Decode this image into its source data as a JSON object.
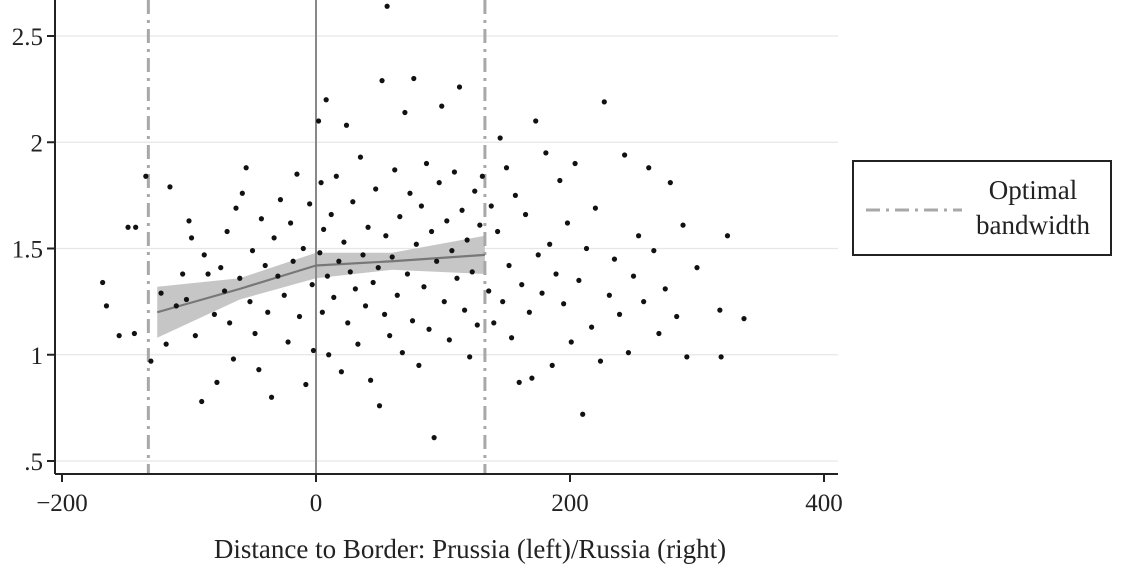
{
  "chart_data": {
    "type": "scatter",
    "title": "",
    "xlabel": "Distance to Border: Prussia (left)/Russia (right)",
    "ylabel": "",
    "xlim": [
      -200,
      410
    ],
    "ylim": [
      0.45,
      2.65
    ],
    "x_ticks": [
      -200,
      0,
      200,
      400
    ],
    "x_tick_labels": [
      "−200",
      "0",
      "200",
      "400"
    ],
    "y_ticks": [
      0.5,
      1,
      1.5,
      2,
      2.5
    ],
    "y_tick_labels": [
      ".5",
      "1",
      "1.5",
      "2",
      "2.5"
    ],
    "grid": "horizontal",
    "border_line_x": 0,
    "bandwidth_lines_x": [
      -132,
      133
    ],
    "legend": {
      "placement": "right",
      "entries": [
        {
          "label_lines": [
            "Optimal",
            "bandwidth"
          ],
          "style": "dash-dot"
        }
      ]
    },
    "colors": {
      "points": "#111111",
      "fit_line": "#777777",
      "ci_band": "#c6c6c6",
      "bandwidth_line": "#a8a8a8",
      "border_line": "#888888",
      "grid": "#e6e6e6",
      "axis": "#222222"
    },
    "fit_left": {
      "x": [
        -125,
        -60,
        0
      ],
      "y": [
        1.2,
        1.31,
        1.42
      ],
      "ci_low": [
        1.08,
        1.26,
        1.36
      ],
      "ci_high": [
        1.32,
        1.36,
        1.48
      ]
    },
    "fit_right": {
      "x": [
        0,
        60,
        133
      ],
      "y": [
        1.42,
        1.44,
        1.47
      ],
      "ci_low": [
        1.36,
        1.4,
        1.38
      ],
      "ci_high": [
        1.48,
        1.48,
        1.56
      ]
    },
    "points": [
      {
        "x": -168,
        "y": 1.34
      },
      {
        "x": -165,
        "y": 1.23
      },
      {
        "x": -155,
        "y": 1.09
      },
      {
        "x": -148,
        "y": 1.6
      },
      {
        "x": -142,
        "y": 1.6
      },
      {
        "x": -143,
        "y": 1.1
      },
      {
        "x": -134,
        "y": 1.84
      },
      {
        "x": -130,
        "y": 0.97
      },
      {
        "x": -122,
        "y": 1.29
      },
      {
        "x": -118,
        "y": 1.05
      },
      {
        "x": -115,
        "y": 1.79
      },
      {
        "x": -110,
        "y": 1.23
      },
      {
        "x": -105,
        "y": 1.38
      },
      {
        "x": -102,
        "y": 1.26
      },
      {
        "x": -100,
        "y": 1.63
      },
      {
        "x": -98,
        "y": 1.55
      },
      {
        "x": -95,
        "y": 1.09
      },
      {
        "x": -90,
        "y": 0.78
      },
      {
        "x": -88,
        "y": 1.47
      },
      {
        "x": -85,
        "y": 1.38
      },
      {
        "x": -80,
        "y": 1.19
      },
      {
        "x": -78,
        "y": 0.87
      },
      {
        "x": -75,
        "y": 1.41
      },
      {
        "x": -72,
        "y": 1.3
      },
      {
        "x": -70,
        "y": 1.58
      },
      {
        "x": -68,
        "y": 1.15
      },
      {
        "x": -65,
        "y": 0.98
      },
      {
        "x": -63,
        "y": 1.69
      },
      {
        "x": -60,
        "y": 1.36
      },
      {
        "x": -58,
        "y": 1.76
      },
      {
        "x": -55,
        "y": 1.88
      },
      {
        "x": -52,
        "y": 1.25
      },
      {
        "x": -50,
        "y": 1.49
      },
      {
        "x": -48,
        "y": 1.1
      },
      {
        "x": -45,
        "y": 0.93
      },
      {
        "x": -43,
        "y": 1.64
      },
      {
        "x": -40,
        "y": 1.42
      },
      {
        "x": -38,
        "y": 1.2
      },
      {
        "x": -35,
        "y": 0.8
      },
      {
        "x": -33,
        "y": 1.55
      },
      {
        "x": -30,
        "y": 1.37
      },
      {
        "x": -28,
        "y": 1.73
      },
      {
        "x": -25,
        "y": 1.28
      },
      {
        "x": -22,
        "y": 1.06
      },
      {
        "x": -20,
        "y": 1.62
      },
      {
        "x": -18,
        "y": 1.44
      },
      {
        "x": -15,
        "y": 1.85
      },
      {
        "x": -13,
        "y": 1.18
      },
      {
        "x": -10,
        "y": 1.5
      },
      {
        "x": -8,
        "y": 0.86
      },
      {
        "x": -5,
        "y": 1.71
      },
      {
        "x": -3,
        "y": 1.33
      },
      {
        "x": -2,
        "y": 1.02
      },
      {
        "x": 2,
        "y": 2.1
      },
      {
        "x": 3,
        "y": 1.48
      },
      {
        "x": 4,
        "y": 1.81
      },
      {
        "x": 5,
        "y": 1.2
      },
      {
        "x": 6,
        "y": 1.59
      },
      {
        "x": 8,
        "y": 2.2
      },
      {
        "x": 9,
        "y": 1.37
      },
      {
        "x": 10,
        "y": 1.0
      },
      {
        "x": 12,
        "y": 1.66
      },
      {
        "x": 14,
        "y": 1.27
      },
      {
        "x": 16,
        "y": 1.84
      },
      {
        "x": 18,
        "y": 1.44
      },
      {
        "x": 20,
        "y": 0.92
      },
      {
        "x": 22,
        "y": 1.53
      },
      {
        "x": 24,
        "y": 2.08
      },
      {
        "x": 25,
        "y": 1.15
      },
      {
        "x": 27,
        "y": 1.39
      },
      {
        "x": 29,
        "y": 1.72
      },
      {
        "x": 31,
        "y": 1.31
      },
      {
        "x": 33,
        "y": 1.05
      },
      {
        "x": 35,
        "y": 1.93
      },
      {
        "x": 37,
        "y": 1.47
      },
      {
        "x": 39,
        "y": 1.23
      },
      {
        "x": 41,
        "y": 1.6
      },
      {
        "x": 43,
        "y": 0.88
      },
      {
        "x": 45,
        "y": 1.34
      },
      {
        "x": 47,
        "y": 1.78
      },
      {
        "x": 49,
        "y": 1.41
      },
      {
        "x": 50,
        "y": 0.76
      },
      {
        "x": 52,
        "y": 2.29
      },
      {
        "x": 54,
        "y": 1.19
      },
      {
        "x": 55,
        "y": 1.56
      },
      {
        "x": 56,
        "y": 2.64
      },
      {
        "x": 58,
        "y": 1.09
      },
      {
        "x": 60,
        "y": 1.46
      },
      {
        "x": 62,
        "y": 1.87
      },
      {
        "x": 64,
        "y": 1.28
      },
      {
        "x": 66,
        "y": 1.65
      },
      {
        "x": 68,
        "y": 1.01
      },
      {
        "x": 70,
        "y": 2.14
      },
      {
        "x": 72,
        "y": 1.38
      },
      {
        "x": 74,
        "y": 1.76
      },
      {
        "x": 76,
        "y": 1.16
      },
      {
        "x": 77,
        "y": 2.3
      },
      {
        "x": 79,
        "y": 1.52
      },
      {
        "x": 81,
        "y": 0.95
      },
      {
        "x": 83,
        "y": 1.7
      },
      {
        "x": 85,
        "y": 1.32
      },
      {
        "x": 87,
        "y": 1.9
      },
      {
        "x": 89,
        "y": 1.12
      },
      {
        "x": 91,
        "y": 1.58
      },
      {
        "x": 93,
        "y": 0.61
      },
      {
        "x": 95,
        "y": 1.44
      },
      {
        "x": 97,
        "y": 1.81
      },
      {
        "x": 99,
        "y": 2.17
      },
      {
        "x": 101,
        "y": 1.25
      },
      {
        "x": 103,
        "y": 1.63
      },
      {
        "x": 105,
        "y": 1.07
      },
      {
        "x": 107,
        "y": 1.49
      },
      {
        "x": 109,
        "y": 1.86
      },
      {
        "x": 111,
        "y": 1.36
      },
      {
        "x": 113,
        "y": 2.26
      },
      {
        "x": 115,
        "y": 1.68
      },
      {
        "x": 117,
        "y": 1.21
      },
      {
        "x": 119,
        "y": 1.54
      },
      {
        "x": 121,
        "y": 0.99
      },
      {
        "x": 123,
        "y": 1.39
      },
      {
        "x": 125,
        "y": 1.77
      },
      {
        "x": 127,
        "y": 1.14
      },
      {
        "x": 129,
        "y": 1.61
      },
      {
        "x": 131,
        "y": 1.84
      },
      {
        "x": 136,
        "y": 1.3
      },
      {
        "x": 138,
        "y": 1.7
      },
      {
        "x": 140,
        "y": 1.15
      },
      {
        "x": 143,
        "y": 1.58
      },
      {
        "x": 145,
        "y": 2.02
      },
      {
        "x": 147,
        "y": 1.25
      },
      {
        "x": 150,
        "y": 1.88
      },
      {
        "x": 152,
        "y": 1.42
      },
      {
        "x": 154,
        "y": 1.08
      },
      {
        "x": 157,
        "y": 1.75
      },
      {
        "x": 160,
        "y": 0.87
      },
      {
        "x": 162,
        "y": 1.33
      },
      {
        "x": 165,
        "y": 1.66
      },
      {
        "x": 168,
        "y": 1.2
      },
      {
        "x": 170,
        "y": 0.89
      },
      {
        "x": 173,
        "y": 2.1
      },
      {
        "x": 175,
        "y": 1.47
      },
      {
        "x": 178,
        "y": 1.29
      },
      {
        "x": 181,
        "y": 1.95
      },
      {
        "x": 184,
        "y": 1.52
      },
      {
        "x": 186,
        "y": 0.95
      },
      {
        "x": 189,
        "y": 1.38
      },
      {
        "x": 192,
        "y": 1.82
      },
      {
        "x": 195,
        "y": 1.24
      },
      {
        "x": 198,
        "y": 1.62
      },
      {
        "x": 201,
        "y": 1.06
      },
      {
        "x": 204,
        "y": 1.9
      },
      {
        "x": 207,
        "y": 1.35
      },
      {
        "x": 210,
        "y": 0.72
      },
      {
        "x": 213,
        "y": 1.5
      },
      {
        "x": 217,
        "y": 1.13
      },
      {
        "x": 220,
        "y": 1.69
      },
      {
        "x": 224,
        "y": 0.97
      },
      {
        "x": 227,
        "y": 2.19
      },
      {
        "x": 231,
        "y": 1.28
      },
      {
        "x": 235,
        "y": 1.45
      },
      {
        "x": 239,
        "y": 1.19
      },
      {
        "x": 243,
        "y": 1.94
      },
      {
        "x": 246,
        "y": 1.01
      },
      {
        "x": 250,
        "y": 1.37
      },
      {
        "x": 254,
        "y": 1.56
      },
      {
        "x": 258,
        "y": 1.25
      },
      {
        "x": 262,
        "y": 1.88
      },
      {
        "x": 266,
        "y": 1.49
      },
      {
        "x": 270,
        "y": 1.1
      },
      {
        "x": 275,
        "y": 1.31
      },
      {
        "x": 279,
        "y": 1.81
      },
      {
        "x": 284,
        "y": 1.18
      },
      {
        "x": 289,
        "y": 1.61
      },
      {
        "x": 292,
        "y": 0.99
      },
      {
        "x": 300,
        "y": 1.41
      },
      {
        "x": 318,
        "y": 1.21
      },
      {
        "x": 319,
        "y": 0.99
      },
      {
        "x": 324,
        "y": 1.56
      },
      {
        "x": 337,
        "y": 1.17
      }
    ]
  }
}
